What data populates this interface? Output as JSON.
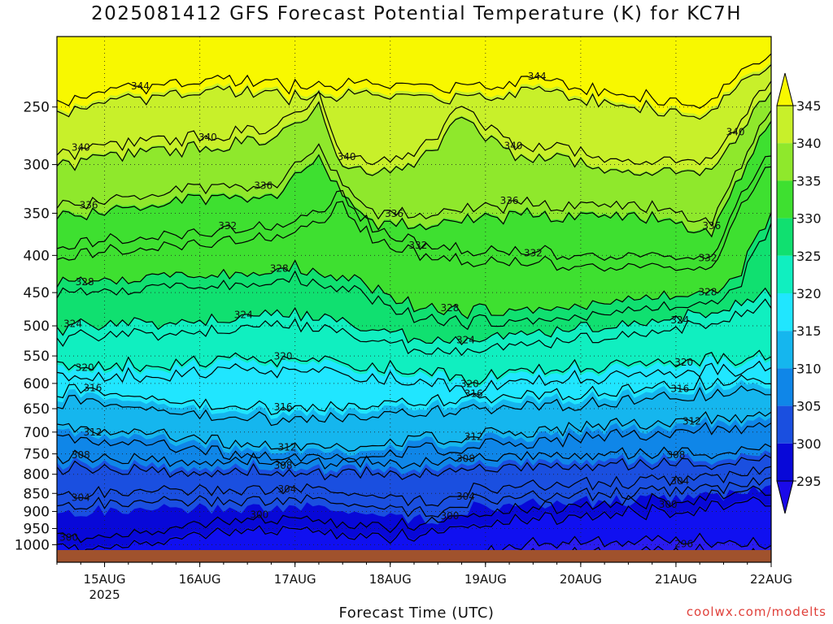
{
  "title": "2025081412 GFS Forecast Potential Temperature (K) for KC7H",
  "credit": "coolwx.com/modelts",
  "chart_data": {
    "type": "heatmap",
    "title": "2025081412 GFS Forecast Potential Temperature (K) for KC7H",
    "xlabel": "Forecast Time (UTC)",
    "ylabel": "",
    "y_axis": {
      "scale": "log",
      "reversed": true,
      "ticks": [
        250,
        300,
        350,
        400,
        450,
        500,
        550,
        600,
        650,
        700,
        750,
        800,
        850,
        900,
        950,
        1000
      ],
      "range": [
        200,
        1025
      ]
    },
    "x_axis": {
      "ticks": [
        {
          "label": "15AUG",
          "sublabel": "2025",
          "hour": 12
        },
        {
          "label": "16AUG",
          "sublabel": "",
          "hour": 36
        },
        {
          "label": "17AUG",
          "sublabel": "",
          "hour": 60
        },
        {
          "label": "18AUG",
          "sublabel": "",
          "hour": 84
        },
        {
          "label": "19AUG",
          "sublabel": "",
          "hour": 108
        },
        {
          "label": "20AUG",
          "sublabel": "",
          "hour": 132
        },
        {
          "label": "21AUG",
          "sublabel": "",
          "hour": 156
        },
        {
          "label": "22AUG",
          "sublabel": "",
          "hour": 180
        }
      ],
      "range_hours": [
        0,
        180
      ]
    },
    "grid": true,
    "colorbar": {
      "labels": [
        345,
        340,
        335,
        330,
        325,
        320,
        315,
        310,
        305,
        300,
        295
      ],
      "levels": [
        295,
        300,
        305,
        310,
        315,
        320,
        325,
        330,
        335,
        340,
        345
      ],
      "colors": [
        "#0808d8",
        "#1a4fe0",
        "#0f86e8",
        "#15b6ee",
        "#20e6ff",
        "#10efc0",
        "#10e070",
        "#3ee030",
        "#8fe82c",
        "#c8f02a",
        "#f8f800"
      ],
      "extend": "both"
    },
    "isotherms": [
      {
        "value": 344,
        "label_hours": [
          21,
          121
        ],
        "profile": "p344"
      },
      {
        "value": 340,
        "label_hours": [
          6,
          38,
          73,
          115,
          171
        ],
        "profile": "p340"
      },
      {
        "value": 336,
        "label_hours": [
          8,
          52,
          85,
          114,
          165
        ],
        "profile": "p336"
      },
      {
        "value": 332,
        "label_hours": [
          43,
          91,
          120,
          164
        ],
        "profile": "p332"
      },
      {
        "value": 328,
        "label_hours": [
          7,
          56,
          99,
          164
        ],
        "profile": "p328"
      },
      {
        "value": 324,
        "label_hours": [
          4,
          47,
          103,
          157
        ],
        "profile": "p324"
      },
      {
        "value": 320,
        "label_hours": [
          7,
          57,
          104,
          158
        ],
        "profile": "p320"
      },
      {
        "value": 316,
        "label_hours": [
          9,
          57,
          105,
          157
        ],
        "profile": "p316"
      },
      {
        "value": 312,
        "label_hours": [
          9,
          58,
          105,
          160
        ],
        "profile": "p312"
      },
      {
        "value": 308,
        "label_hours": [
          6,
          57,
          103,
          156
        ],
        "profile": "p308"
      },
      {
        "value": 304,
        "label_hours": [
          6,
          58,
          103,
          157
        ],
        "profile": "p304"
      },
      {
        "value": 300,
        "label_hours": [
          3,
          51,
          99,
          154
        ],
        "profile": "p300"
      },
      {
        "value": 296,
        "label_hours": [
          158
        ],
        "profile": "p296"
      }
    ],
    "surface_band_color": "#a0522d"
  }
}
